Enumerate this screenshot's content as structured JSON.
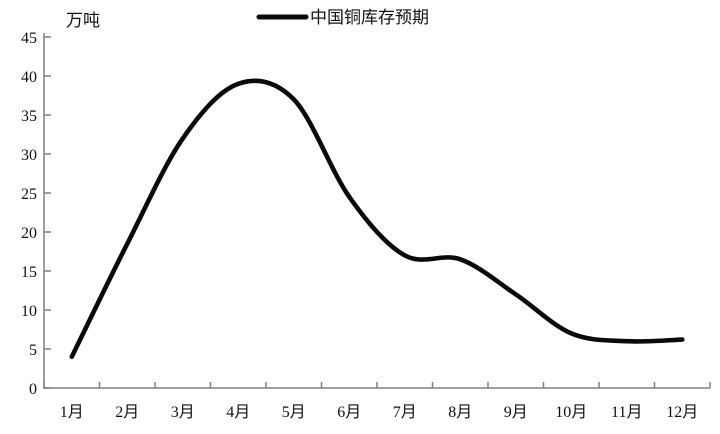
{
  "page": {
    "background": "#ffffff"
  },
  "chart_data": {
    "type": "line",
    "legend_label": "中国铜库存预期",
    "unit_label": "万吨",
    "categories": [
      "1月",
      "2月",
      "3月",
      "4月",
      "5月",
      "6月",
      "7月",
      "8月",
      "9月",
      "10月",
      "11月",
      "12月"
    ],
    "values": [
      4,
      18.5,
      32,
      39,
      37,
      24.5,
      17,
      16.5,
      12,
      7,
      6,
      6.2
    ],
    "ylim": [
      0,
      45
    ],
    "ytick_step": 5,
    "yticks": [
      0,
      5,
      10,
      15,
      20,
      25,
      30,
      35,
      40,
      45
    ],
    "grid": false,
    "legend_position": "top-center",
    "smoothed": true,
    "line_color": "#0a0a0a",
    "axis_color": "#808080",
    "text_color": "#111111"
  }
}
